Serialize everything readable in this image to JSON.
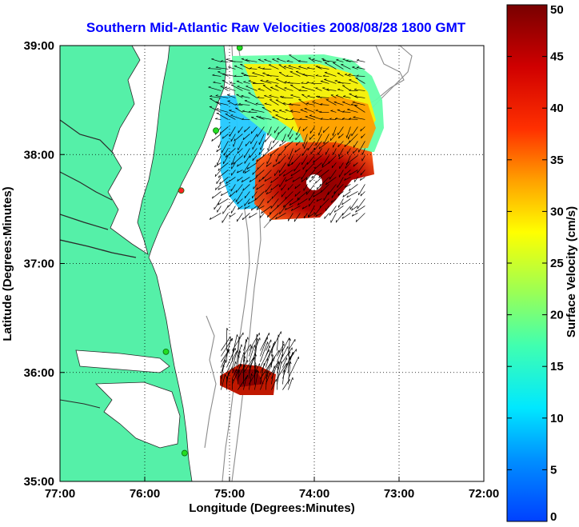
{
  "title": "Southern Mid-Atlantic Raw Velocities 2008/08/28 1800 GMT",
  "xlabel": "Longitude (Degrees:Minutes)",
  "ylabel": "Latitude (Degrees:Minutes)",
  "x_ticks": [
    "77:00",
    "76:00",
    "75:00",
    "74:00",
    "73:00",
    "72:00"
  ],
  "y_ticks": [
    "39:00",
    "38:00",
    "37:00",
    "36:00",
    "35:00"
  ],
  "colorbar": {
    "label": "Surface Velocity (cm/s)",
    "ticks": [
      "0",
      "5",
      "10",
      "15",
      "20",
      "25",
      "30",
      "35",
      "40",
      "45",
      "50"
    ],
    "range": [
      0,
      50
    ]
  },
  "map": {
    "lon_range": [
      -77,
      -72
    ],
    "lat_range": [
      35,
      39
    ],
    "grid": true,
    "land_color": "#55f0a8",
    "stations": [
      {
        "lon": -74.88,
        "lat": 38.98,
        "color": "#22dd22"
      },
      {
        "lon": -75.16,
        "lat": 38.22,
        "color": "#22dd22"
      },
      {
        "lon": -75.57,
        "lat": 37.67,
        "color": "#ff2222"
      },
      {
        "lon": -75.75,
        "lat": 36.19,
        "color": "#22dd22"
      },
      {
        "lon": -75.53,
        "lat": 35.26,
        "color": "#22dd22"
      }
    ],
    "north_field": {
      "lon": [
        -75.1,
        -73.4
      ],
      "lat": [
        37.4,
        38.85
      ]
    },
    "south_field": {
      "lon": [
        -75.1,
        -74.3
      ],
      "lat": [
        35.83,
        36.2
      ]
    }
  }
}
